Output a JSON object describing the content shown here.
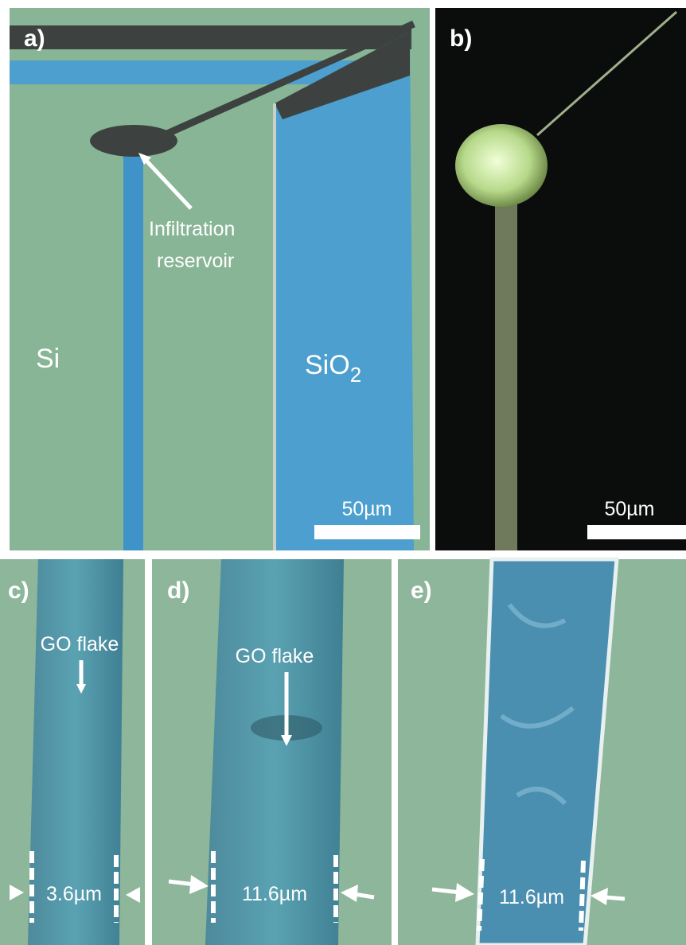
{
  "panel_a": {
    "label": "a)",
    "callout": [
      "Infiltration",
      "reservoir"
    ],
    "region_si": "Si",
    "region_sio2": {
      "text": "SiO",
      "subscript": "2"
    },
    "scale_bar": "50µm"
  },
  "panel_b": {
    "label": "b)",
    "scale_bar": "50µm"
  },
  "panel_c": {
    "label": "c)",
    "callout": "GO flake",
    "width": "3.6µm"
  },
  "panel_d": {
    "label": "d)",
    "callout": "GO flake",
    "width": "11.6µm"
  },
  "panel_e": {
    "label": "e)",
    "width": "11.6µm"
  }
}
